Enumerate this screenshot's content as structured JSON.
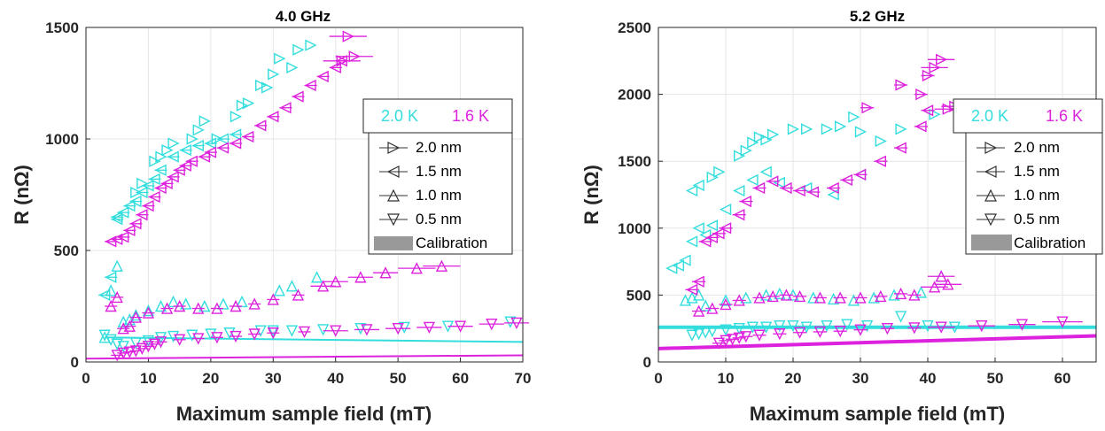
{
  "chart_data": [
    {
      "type": "scatter",
      "title": "4.0 GHz",
      "xlabel": "Maximum sample field (mT)",
      "ylabel": "R (nΩ)",
      "xlim": [
        0,
        70
      ],
      "ylim": [
        0,
        1500
      ],
      "xticks": [
        "0",
        "10",
        "20",
        "30",
        "40",
        "50",
        "60",
        "70"
      ],
      "yticks": [
        "0",
        "500",
        "1000",
        "1500"
      ],
      "grid": true,
      "legend_position": "right",
      "temperature_legend": [
        {
          "label": "2.0 K",
          "color": "#33DDDD"
        },
        {
          "label": "1.6 K",
          "color": "#DD22DD"
        }
      ],
      "marker_legend": [
        {
          "label": "2.0 nm",
          "marker": "triangle-right"
        },
        {
          "label": "1.5 nm",
          "marker": "triangle-left"
        },
        {
          "label": "1.0 nm",
          "marker": "triangle-up"
        },
        {
          "label": "0.5 nm",
          "marker": "triangle-down"
        },
        {
          "label": "Calibration",
          "marker": "band"
        }
      ],
      "series": [
        {
          "name": "2.0 nm",
          "temperature": "2.0 K",
          "marker": "triangle-right",
          "x": [
            8,
            9,
            11,
            12,
            13,
            14,
            17,
            18,
            19,
            21,
            24,
            25,
            26,
            28,
            29,
            30,
            31,
            33,
            34,
            36
          ],
          "y": [
            760,
            800,
            900,
            920,
            950,
            980,
            1000,
            1040,
            1080,
            1000,
            1100,
            1150,
            1160,
            1240,
            1230,
            1290,
            1360,
            1320,
            1400,
            1420
          ]
        },
        {
          "name": "1.5 nm",
          "temperature": "2.0 K",
          "marker": "triangle-left",
          "x": [
            3,
            4,
            5,
            5,
            6,
            7,
            8,
            9,
            10,
            11,
            12,
            14,
            16,
            18,
            20,
            22,
            24
          ],
          "y": [
            300,
            380,
            650,
            640,
            670,
            700,
            720,
            760,
            790,
            820,
            860,
            920,
            950,
            970,
            980,
            1000,
            1020
          ],
          "xerr": [
            1,
            1,
            1,
            1,
            1,
            1,
            1,
            1,
            1,
            1,
            1,
            1,
            1,
            1,
            1,
            1,
            1
          ]
        },
        {
          "name": "1.0 nm",
          "temperature": "2.0 K",
          "marker": "triangle-up",
          "x": [
            3,
            4,
            5,
            6,
            7,
            8,
            10,
            12,
            14,
            16,
            19,
            22,
            25,
            31,
            33,
            37
          ],
          "y": [
            110,
            320,
            430,
            180,
            190,
            210,
            230,
            250,
            270,
            260,
            250,
            260,
            270,
            320,
            340,
            380
          ]
        },
        {
          "name": "0.5 nm",
          "temperature": "2.0 K",
          "marker": "triangle-down",
          "x": [
            3,
            4,
            5,
            6,
            8,
            10,
            12,
            14,
            17,
            20,
            23,
            28,
            30,
            33,
            38,
            44,
            51,
            58,
            68
          ],
          "y": [
            120,
            100,
            80,
            70,
            85,
            95,
            110,
            115,
            120,
            125,
            130,
            140,
            140,
            140,
            145,
            150,
            155,
            160,
            180
          ]
        },
        {
          "name": "2.0 nm",
          "temperature": "1.6 K",
          "marker": "triangle-right",
          "x": [
            41,
            42,
            43
          ],
          "y": [
            1350,
            1460,
            1370
          ],
          "xerr": [
            3,
            3,
            3
          ]
        },
        {
          "name": "1.5 nm",
          "temperature": "1.6 K",
          "marker": "triangle-left",
          "x": [
            4,
            5,
            6,
            7,
            8,
            9,
            10,
            11,
            12,
            13,
            14,
            15,
            16,
            17,
            19,
            20,
            22,
            24,
            26,
            28,
            30,
            32,
            34,
            36,
            38,
            40,
            41
          ],
          "y": [
            540,
            550,
            560,
            590,
            620,
            660,
            700,
            740,
            780,
            800,
            830,
            860,
            880,
            900,
            920,
            940,
            960,
            980,
            1010,
            1060,
            1100,
            1140,
            1190,
            1240,
            1280,
            1320,
            1350
          ],
          "xerr": [
            1,
            1,
            1,
            1,
            1,
            1,
            1,
            1,
            1,
            1,
            1,
            1,
            1,
            1,
            1,
            1,
            1,
            1,
            1,
            1,
            1,
            1,
            1,
            1,
            1,
            1,
            1
          ]
        },
        {
          "name": "1.0 nm",
          "temperature": "1.6 K",
          "marker": "triangle-up",
          "x": [
            4,
            5,
            6,
            7,
            8,
            10,
            13,
            15,
            18,
            21,
            24,
            27,
            30,
            34,
            38,
            40,
            44,
            48,
            53,
            57
          ],
          "y": [
            250,
            290,
            150,
            160,
            200,
            220,
            240,
            250,
            240,
            240,
            250,
            260,
            280,
            300,
            340,
            360,
            380,
            400,
            420,
            430
          ],
          "xerr": [
            1,
            1,
            1,
            1,
            1,
            1,
            1,
            1,
            1,
            1,
            1,
            1,
            1,
            1,
            2,
            2,
            2,
            2,
            3,
            3
          ]
        },
        {
          "name": "0.5 nm",
          "temperature": "1.6 K",
          "marker": "triangle-down",
          "x": [
            5,
            6,
            7,
            8,
            9,
            10,
            11,
            12,
            15,
            18,
            21,
            24,
            27,
            30,
            35,
            40,
            45,
            50,
            55,
            60,
            65,
            69
          ],
          "y": [
            30,
            40,
            45,
            50,
            60,
            70,
            80,
            90,
            100,
            105,
            110,
            115,
            125,
            130,
            135,
            140,
            145,
            150,
            155,
            160,
            170,
            175
          ],
          "xerr": [
            1,
            1,
            1,
            1,
            1,
            1,
            1,
            1,
            1,
            1,
            1,
            1,
            1,
            1,
            1,
            2,
            2,
            2,
            2,
            2,
            2,
            2
          ]
        },
        {
          "name": "Calibration",
          "temperature": "2.0 K",
          "marker": "band",
          "x": [
            3,
            70
          ],
          "y": [
            110,
            90
          ]
        },
        {
          "name": "Calibration",
          "temperature": "1.6 K",
          "marker": "band",
          "x": [
            0,
            70
          ],
          "y": [
            15,
            30
          ]
        }
      ]
    },
    {
      "type": "scatter",
      "title": "5.2 GHz",
      "xlabel": "Maximum sample field (mT)",
      "ylabel": "R (nΩ)",
      "xlim": [
        0,
        65
      ],
      "ylim": [
        0,
        2500
      ],
      "xticks": [
        "0",
        "10",
        "20",
        "30",
        "40",
        "50",
        "60"
      ],
      "yticks": [
        "0",
        "500",
        "1000",
        "1500",
        "2000",
        "2500"
      ],
      "grid": true,
      "legend_position": "right",
      "temperature_legend": [
        {
          "label": "2.0 K",
          "color": "#33DDDD"
        },
        {
          "label": "1.6 K",
          "color": "#DD22DD"
        }
      ],
      "marker_legend": [
        {
          "label": "2.0 nm",
          "marker": "triangle-right"
        },
        {
          "label": "1.5 nm",
          "marker": "triangle-left"
        },
        {
          "label": "1.0 nm",
          "marker": "triangle-up"
        },
        {
          "label": "0.5 nm",
          "marker": "triangle-down"
        },
        {
          "label": "Calibration",
          "marker": "band"
        }
      ],
      "series": [
        {
          "name": "2.0 nm",
          "temperature": "2.0 K",
          "marker": "triangle-right",
          "x": [
            8,
            9,
            12,
            13,
            14,
            15,
            16,
            17,
            20,
            22,
            25,
            27,
            29,
            30,
            33,
            36,
            41
          ],
          "y": [
            1380,
            1420,
            1540,
            1580,
            1640,
            1680,
            1660,
            1700,
            1740,
            1740,
            1740,
            1760,
            1830,
            1720,
            1650,
            1740,
            1850
          ]
        },
        {
          "name": "1.5 nm",
          "temperature": "2.0 K",
          "marker": "triangle-left",
          "x": [
            2,
            3,
            4,
            5,
            5,
            6,
            6,
            7,
            8,
            10,
            12,
            14,
            16,
            18,
            22,
            26,
            30
          ],
          "y": [
            700,
            720,
            760,
            900,
            1280,
            1320,
            1000,
            950,
            1020,
            1140,
            1280,
            1360,
            1420,
            1340,
            1300,
            1250,
            1400
          ]
        },
        {
          "name": "1.0 nm",
          "temperature": "2.0 K",
          "marker": "triangle-up",
          "x": [
            4,
            5,
            6,
            7,
            10,
            13,
            16,
            18,
            20,
            23,
            26,
            29,
            32,
            35,
            39,
            42
          ],
          "y": [
            460,
            480,
            500,
            420,
            460,
            480,
            500,
            510,
            500,
            480,
            470,
            460,
            480,
            500,
            520,
            640
          ]
        },
        {
          "name": "0.5 nm",
          "temperature": "2.0 K",
          "marker": "triangle-down",
          "x": [
            5,
            6,
            7,
            8,
            10,
            12,
            14,
            16,
            18,
            20,
            22,
            25,
            28,
            31,
            36,
            40,
            44
          ],
          "y": [
            200,
            210,
            220,
            230,
            240,
            250,
            260,
            260,
            270,
            270,
            260,
            270,
            280,
            270,
            340,
            270,
            260
          ]
        },
        {
          "name": "2.0 nm",
          "temperature": "1.6 K",
          "marker": "triangle-right",
          "x": [
            31,
            36,
            39,
            40,
            41,
            42,
            43,
            44
          ],
          "y": [
            1900,
            2070,
            2000,
            2140,
            2200,
            2260,
            1890,
            1910
          ],
          "xerr": [
            1,
            1,
            1,
            1,
            2,
            2,
            2,
            2
          ]
        },
        {
          "name": "1.5 nm",
          "temperature": "1.6 K",
          "marker": "triangle-left",
          "x": [
            5,
            6,
            7,
            8,
            9,
            10,
            12,
            13,
            15,
            17,
            19,
            21,
            23,
            26,
            28,
            30,
            33,
            36,
            39,
            40
          ],
          "y": [
            540,
            600,
            900,
            930,
            960,
            1000,
            1100,
            1200,
            1300,
            1350,
            1300,
            1280,
            1270,
            1300,
            1360,
            1400,
            1500,
            1600,
            1760,
            1880
          ],
          "xerr": [
            1,
            1,
            1,
            1,
            1,
            1,
            1,
            1,
            1,
            1,
            1,
            1,
            1,
            1,
            1,
            1,
            1,
            1,
            1,
            1
          ]
        },
        {
          "name": "1.0 nm",
          "temperature": "1.6 K",
          "marker": "triangle-up",
          "x": [
            6,
            8,
            10,
            12,
            15,
            17,
            19,
            21,
            24,
            27,
            30,
            33,
            36,
            38,
            41,
            42,
            43
          ],
          "y": [
            380,
            400,
            430,
            460,
            480,
            490,
            500,
            490,
            480,
            480,
            480,
            490,
            510,
            500,
            560,
            640,
            580
          ],
          "xerr": [
            1,
            1,
            1,
            1,
            1,
            1,
            1,
            1,
            1,
            1,
            1,
            1,
            1,
            1,
            2,
            2,
            2
          ]
        },
        {
          "name": "0.5 nm",
          "temperature": "1.6 K",
          "marker": "triangle-down",
          "x": [
            9,
            10,
            11,
            12,
            13,
            15,
            18,
            21,
            24,
            27,
            30,
            34,
            38,
            42,
            48,
            54,
            60
          ],
          "y": [
            140,
            160,
            170,
            180,
            190,
            200,
            210,
            220,
            225,
            230,
            240,
            250,
            255,
            260,
            270,
            280,
            300
          ],
          "xerr": [
            1,
            1,
            1,
            1,
            1,
            1,
            1,
            1,
            1,
            1,
            1,
            1,
            1,
            2,
            2,
            2,
            3
          ]
        },
        {
          "name": "Calibration",
          "temperature": "2.0 K",
          "marker": "band",
          "x": [
            0,
            65
          ],
          "y": [
            260,
            260
          ]
        },
        {
          "name": "Calibration",
          "temperature": "1.6 K",
          "marker": "band",
          "x": [
            0,
            65
          ],
          "y": [
            100,
            195
          ]
        }
      ]
    }
  ]
}
